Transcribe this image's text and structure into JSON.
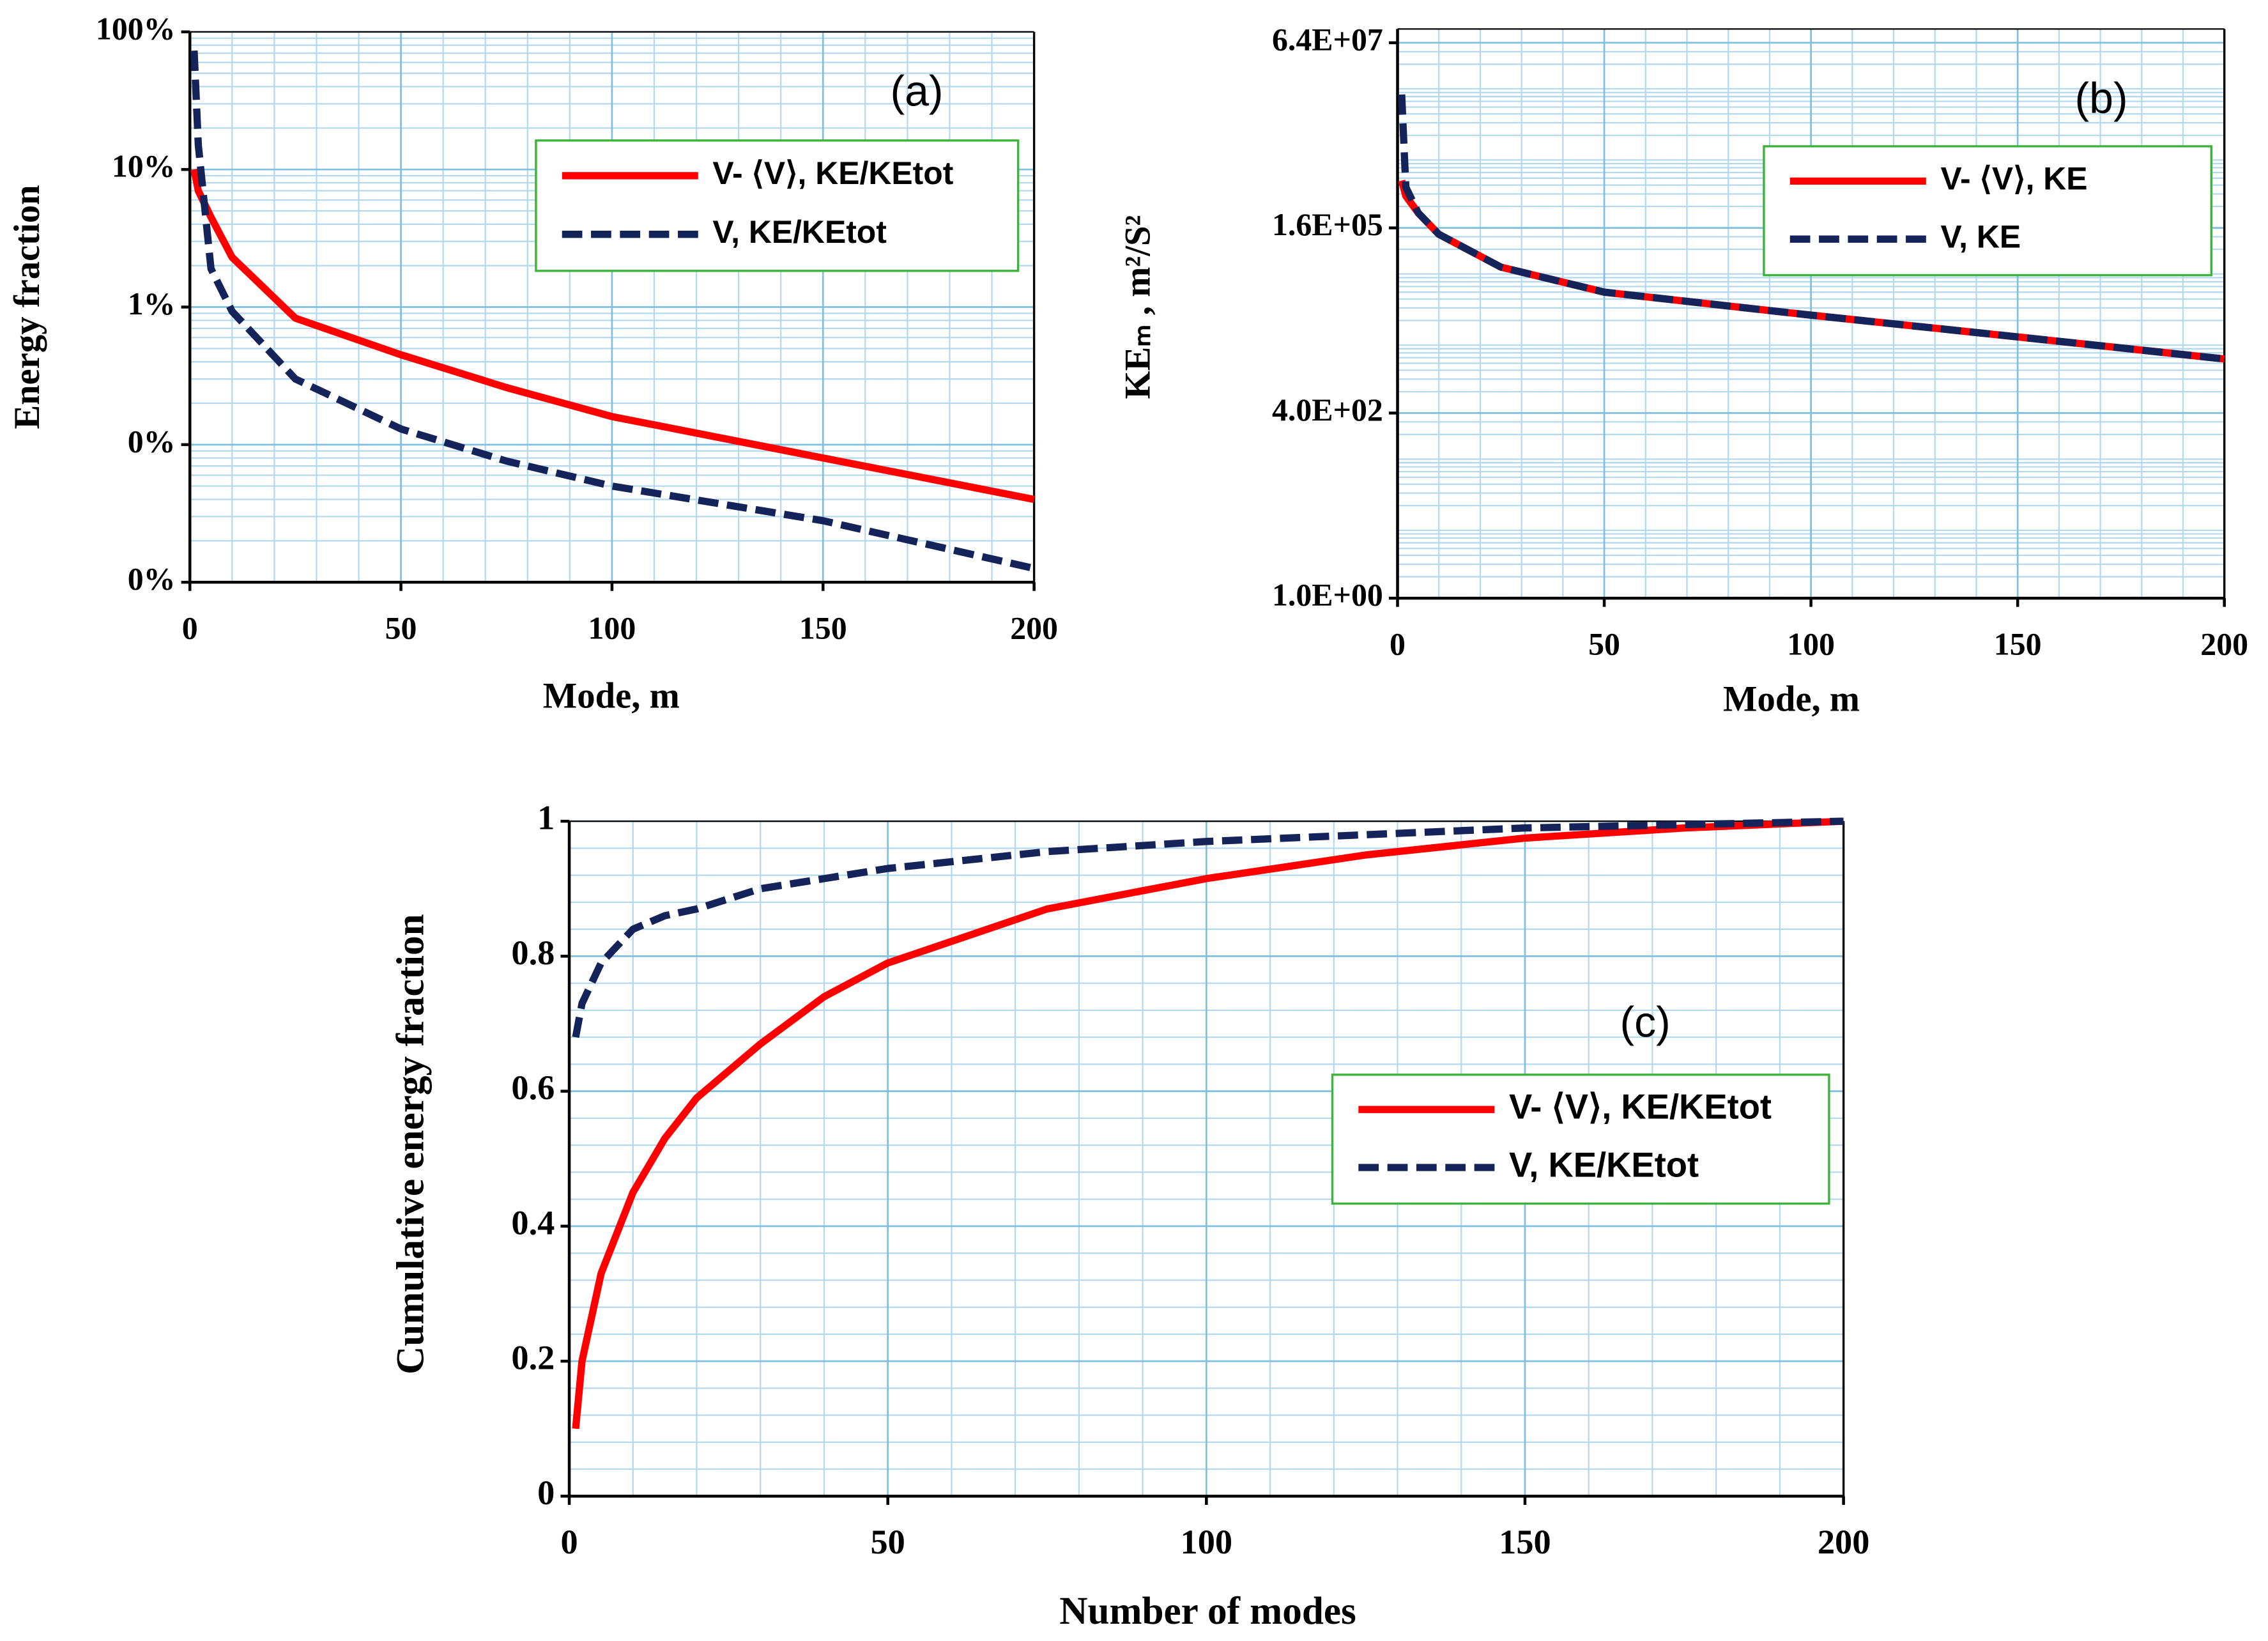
{
  "chart_data": [
    {
      "type": "line",
      "annotation": "(a)",
      "xlabel": "Mode, m",
      "ylabel": "Energy fraction",
      "log_y": true,
      "grid": true,
      "x": [
        1,
        2,
        5,
        10,
        25,
        50,
        75,
        100,
        150,
        200
      ],
      "series": [
        {
          "name": "V- ⟨V⟩, KE/KEtot",
          "color": "#ff0000",
          "dashed": false,
          "values": [
            10,
            7,
            4.5,
            2.3,
            0.83,
            0.45,
            0.26,
            0.16,
            0.08,
            0.04
          ]
        },
        {
          "name": "V, KE/KEtot",
          "color": "#14245a",
          "dashed": true,
          "values": [
            73,
            15,
            1.9,
            0.93,
            0.3,
            0.13,
            0.076,
            0.05,
            0.028,
            0.0126
          ]
        }
      ],
      "xlim": [
        0,
        200
      ],
      "xticks": [
        0,
        50,
        100,
        150,
        200
      ],
      "ylim": [
        0.01,
        100
      ],
      "yticks": [
        {
          "value": 100,
          "label": "100%"
        },
        {
          "value": 10,
          "label": "10%"
        },
        {
          "value": 1,
          "label": "1%"
        },
        {
          "value": 0.1,
          "label": "0%"
        },
        {
          "value": 0.01,
          "label": "0%"
        }
      ]
    },
    {
      "type": "line",
      "annotation": "(b)",
      "xlabel": "Mode, m",
      "ylabel": "KEₘ ,  m²/S²",
      "log_y": true,
      "grid": true,
      "x": [
        1,
        2,
        5,
        10,
        25,
        50,
        100,
        150,
        200
      ],
      "series": [
        {
          "name": "V- ⟨V⟩, KE",
          "color": "#ff0000",
          "dashed": false,
          "values": [
            740000,
            450000,
            260000,
            130000,
            45000,
            20000,
            9500,
            4700,
            2300
          ]
        },
        {
          "name": "V, KE",
          "color": "#14245a",
          "dashed": true,
          "values": [
            12000000,
            600000,
            260000,
            130000,
            45000,
            20000,
            9500,
            4700,
            2300
          ]
        }
      ],
      "xlim": [
        0,
        200
      ],
      "xticks": [
        0,
        50,
        100,
        150,
        200
      ],
      "ylim": [
        1,
        100000000
      ],
      "yticks": [
        {
          "value": 1,
          "label": "1.0E+00"
        },
        {
          "value": 400,
          "label": "4.0E+02"
        },
        {
          "value": 160000,
          "label": "1.6E+05"
        },
        {
          "value": 64000000,
          "label": "6.4E+07"
        }
      ]
    },
    {
      "type": "line",
      "annotation": "(c)",
      "xlabel": "Number of modes",
      "ylabel": "Cumulative energy fraction",
      "log_y": false,
      "grid": true,
      "x": [
        1,
        2,
        5,
        10,
        15,
        20,
        30,
        40,
        50,
        75,
        100,
        125,
        150,
        175,
        200
      ],
      "series": [
        {
          "name": "V- ⟨V⟩, KE/KEtot",
          "color": "#ff0000",
          "dashed": false,
          "values": [
            0.1,
            0.2,
            0.33,
            0.45,
            0.53,
            0.59,
            0.67,
            0.74,
            0.79,
            0.87,
            0.915,
            0.95,
            0.975,
            0.99,
            1
          ]
        },
        {
          "name": "V, KE/KEtot",
          "color": "#14245a",
          "dashed": true,
          "values": [
            0.68,
            0.73,
            0.79,
            0.84,
            0.86,
            0.87,
            0.9,
            0.915,
            0.93,
            0.955,
            0.97,
            0.98,
            0.99,
            0.995,
            1
          ]
        }
      ],
      "xlim": [
        0,
        200
      ],
      "xticks": [
        0,
        50,
        100,
        150,
        200
      ],
      "ylim": [
        0,
        1
      ],
      "yticks": [
        0,
        0.2,
        0.4,
        0.6,
        0.8,
        1
      ]
    }
  ]
}
